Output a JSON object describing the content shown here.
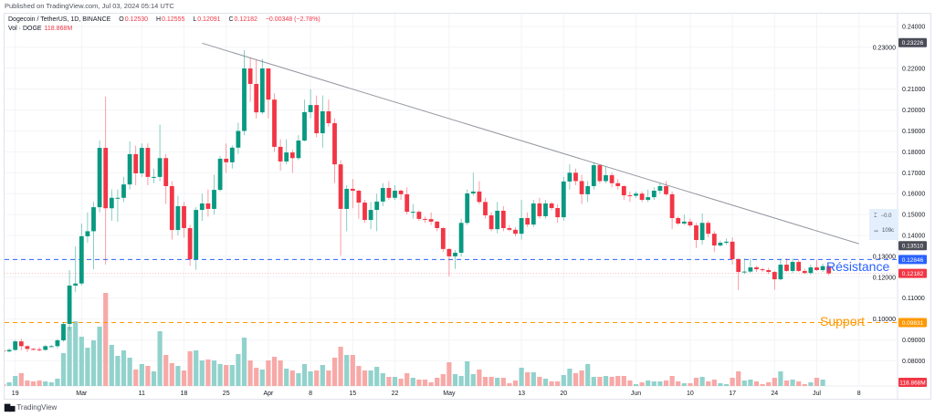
{
  "header": {
    "published": "Published on TradingView.com, Jul 03, 2024 05:14 UTC",
    "symbol": "Dogecoin / TetherUS, 1D, BINANCE",
    "o_label": "O",
    "o": "0.12530",
    "h_label": "H",
    "h": "0.12555",
    "l_label": "L",
    "l": "0.12091",
    "c_label": "C",
    "c": "0.12182",
    "change": "−0.00348 (−2.78%)",
    "vol_label": "Vol · DOGE",
    "vol": "118.868M"
  },
  "footer": {
    "logo_text": "TradingView",
    "logo_icon": "tradingview-logo-icon"
  },
  "measure_tool": {
    "price_change": "−0.0",
    "bars": "109c",
    "icons": [
      "height-icon",
      "width-icon"
    ]
  },
  "annotations": {
    "resistance": {
      "label": "Résistance",
      "price": 0.12846,
      "badge": "0.12846",
      "color": "#2962ff"
    },
    "support": {
      "label": "Support",
      "price": 0.09831,
      "badge": "0.09831",
      "color": "#ff9800"
    },
    "trendline": {
      "from": {
        "date": "2024-03-21",
        "price": 0.232
      },
      "to": {
        "date": "2024-07-08",
        "price": 0.136
      },
      "color": "#9598a1"
    }
  },
  "price_badges": [
    {
      "text": "0.23226",
      "price": 0.23226,
      "color": "#4a4d57"
    },
    {
      "text": "0.13510",
      "price": 0.1351,
      "color": "#4a4d57"
    },
    {
      "text": "0.12182",
      "price": 0.12182,
      "color": "#f23645"
    }
  ],
  "volume_badge": {
    "text": "118.868M",
    "color": "#f23645"
  },
  "colors": {
    "up": "#089981",
    "down": "#f23645",
    "vol_up": "#92d2cc",
    "vol_down": "#f7a9a7",
    "last_price_line": "#f23645"
  },
  "chart_data": {
    "type": "candlestick",
    "title": "Dogecoin / TetherUS, 1D, BINANCE",
    "ylim": [
      0.075,
      0.245
    ],
    "y_ticks": [
      "0.24000",
      "0.23000",
      "0.22000",
      "0.21000",
      "0.20000",
      "0.19000",
      "0.18000",
      "0.17000",
      "0.16000",
      "0.15000",
      "0.14000",
      "0.13000",
      "0.12000",
      "0.11000",
      "0.10000",
      "0.09000",
      "0.08000"
    ],
    "x_ticks": [
      {
        "label": "19",
        "date": "2024-02-19"
      },
      {
        "label": "Mar",
        "date": "2024-03-01"
      },
      {
        "label": "11",
        "date": "2024-03-11"
      },
      {
        "label": "18",
        "date": "2024-03-18"
      },
      {
        "label": "25",
        "date": "2024-03-25"
      },
      {
        "label": "Apr",
        "date": "2024-04-01"
      },
      {
        "label": "8",
        "date": "2024-04-08"
      },
      {
        "label": "15",
        "date": "2024-04-15"
      },
      {
        "label": "22",
        "date": "2024-04-22"
      },
      {
        "label": "May",
        "date": "2024-05-01"
      },
      {
        "label": "13",
        "date": "2024-05-13"
      },
      {
        "label": "20",
        "date": "2024-05-20"
      },
      {
        "label": "Jun",
        "date": "2024-06-01"
      },
      {
        "label": "10",
        "date": "2024-06-10"
      },
      {
        "label": "17",
        "date": "2024-06-17"
      },
      {
        "label": "24",
        "date": "2024-06-24"
      },
      {
        "label": "Jul",
        "date": "2024-07-01"
      },
      {
        "label": "8",
        "date": "2024-07-08"
      }
    ],
    "grid": true,
    "columns": [
      "date",
      "open",
      "high",
      "low",
      "close",
      "volume_millions"
    ],
    "candles": [
      [
        "2024-02-17",
        0.085,
        0.086,
        0.0838,
        0.0845,
        330
      ],
      [
        "2024-02-18",
        0.0845,
        0.086,
        0.084,
        0.0852,
        550
      ],
      [
        "2024-02-19",
        0.0852,
        0.09,
        0.0848,
        0.0893,
        1320
      ],
      [
        "2024-02-20",
        0.0893,
        0.0905,
        0.085,
        0.087,
        1650
      ],
      [
        "2024-02-21",
        0.087,
        0.0875,
        0.0842,
        0.0857,
        770
      ],
      [
        "2024-02-22",
        0.0857,
        0.0862,
        0.085,
        0.0855,
        660
      ],
      [
        "2024-02-23",
        0.0855,
        0.0865,
        0.0845,
        0.0852,
        770
      ],
      [
        "2024-02-24",
        0.0852,
        0.0875,
        0.085,
        0.087,
        660
      ],
      [
        "2024-02-25",
        0.087,
        0.0876,
        0.0865,
        0.087,
        550
      ],
      [
        "2024-02-26",
        0.087,
        0.0905,
        0.086,
        0.0898,
        990
      ],
      [
        "2024-02-27",
        0.0898,
        0.0985,
        0.089,
        0.0976,
        4070
      ],
      [
        "2024-02-28",
        0.0976,
        0.1234,
        0.0946,
        0.116,
        7260
      ],
      [
        "2024-02-29",
        0.116,
        0.1347,
        0.113,
        0.117,
        7920
      ],
      [
        "2024-03-01",
        0.117,
        0.1457,
        0.116,
        0.1396,
        6050
      ],
      [
        "2024-03-02",
        0.1396,
        0.151,
        0.1365,
        0.142,
        4730
      ],
      [
        "2024-03-03",
        0.142,
        0.156,
        0.1238,
        0.1535,
        5610
      ],
      [
        "2024-03-04",
        0.1535,
        0.1854,
        0.151,
        0.1819,
        7260
      ],
      [
        "2024-03-05",
        0.1819,
        0.2064,
        0.126,
        0.153,
        11330
      ],
      [
        "2024-03-06",
        0.153,
        0.162,
        0.147,
        0.158,
        5060
      ],
      [
        "2024-03-07",
        0.158,
        0.162,
        0.1465,
        0.158,
        3740
      ],
      [
        "2024-03-08",
        0.158,
        0.168,
        0.156,
        0.1644,
        4400
      ],
      [
        "2024-03-09",
        0.1644,
        0.185,
        0.162,
        0.1789,
        3520
      ],
      [
        "2024-03-10",
        0.1789,
        0.183,
        0.164,
        0.1697,
        2090
      ],
      [
        "2024-03-11",
        0.1697,
        0.184,
        0.168,
        0.1819,
        2750
      ],
      [
        "2024-03-12",
        0.1819,
        0.184,
        0.164,
        0.168,
        2530
      ],
      [
        "2024-03-13",
        0.168,
        0.172,
        0.165,
        0.168,
        1870
      ],
      [
        "2024-03-14",
        0.168,
        0.193,
        0.166,
        0.177,
        6710
      ],
      [
        "2024-03-15",
        0.177,
        0.179,
        0.155,
        0.1636,
        3850
      ],
      [
        "2024-03-16",
        0.1636,
        0.166,
        0.138,
        0.1426,
        2860
      ],
      [
        "2024-03-17",
        0.1426,
        0.159,
        0.14,
        0.154,
        2530
      ],
      [
        "2024-03-18",
        0.154,
        0.156,
        0.139,
        0.1435,
        1980
      ],
      [
        "2024-03-19",
        0.1435,
        0.145,
        0.1255,
        0.1286,
        4290
      ],
      [
        "2024-03-20",
        0.1286,
        0.1535,
        0.1235,
        0.1522,
        4400
      ],
      [
        "2024-03-21",
        0.1522,
        0.16,
        0.147,
        0.1553,
        3190
      ],
      [
        "2024-03-22",
        0.1553,
        0.162,
        0.149,
        0.1527,
        3300
      ],
      [
        "2024-03-23",
        0.1527,
        0.169,
        0.15,
        0.1618,
        3190
      ],
      [
        "2024-03-24",
        0.1618,
        0.178,
        0.161,
        0.1767,
        2750
      ],
      [
        "2024-03-25",
        0.1767,
        0.184,
        0.17,
        0.175,
        2640
      ],
      [
        "2024-03-26",
        0.175,
        0.183,
        0.172,
        0.182,
        2640
      ],
      [
        "2024-03-27",
        0.182,
        0.194,
        0.179,
        0.19,
        3960
      ],
      [
        "2024-03-28",
        0.19,
        0.2287,
        0.188,
        0.2199,
        5940
      ],
      [
        "2024-03-29",
        0.2199,
        0.225,
        0.204,
        0.2125,
        3190
      ],
      [
        "2024-03-30",
        0.2125,
        0.224,
        0.196,
        0.1989,
        2310
      ],
      [
        "2024-03-31",
        0.1989,
        0.2245,
        0.198,
        0.2199,
        2090
      ],
      [
        "2024-04-01",
        0.2199,
        0.22,
        0.196,
        0.205,
        3190
      ],
      [
        "2024-04-02",
        0.205,
        0.208,
        0.18,
        0.1824,
        3630
      ],
      [
        "2024-04-03",
        0.1824,
        0.186,
        0.171,
        0.1754,
        3190
      ],
      [
        "2024-04-04",
        0.1754,
        0.186,
        0.174,
        0.1797,
        2200
      ],
      [
        "2024-04-05",
        0.1797,
        0.181,
        0.17,
        0.177,
        1980
      ],
      [
        "2024-04-06",
        0.177,
        0.188,
        0.176,
        0.1854,
        1650
      ],
      [
        "2024-04-07",
        0.1854,
        0.205,
        0.185,
        0.199,
        2750
      ],
      [
        "2024-04-08",
        0.199,
        0.21,
        0.196,
        0.2024,
        1870
      ],
      [
        "2024-04-09",
        0.2024,
        0.207,
        0.187,
        0.1889,
        1980
      ],
      [
        "2024-04-10",
        0.1889,
        0.207,
        0.182,
        0.1994,
        2640
      ],
      [
        "2024-04-11",
        0.1994,
        0.205,
        0.192,
        0.1937,
        1980
      ],
      [
        "2024-04-12",
        0.1937,
        0.196,
        0.165,
        0.174,
        3520
      ],
      [
        "2024-04-13",
        0.174,
        0.176,
        0.1304,
        0.1527,
        4840
      ],
      [
        "2024-04-14",
        0.1527,
        0.164,
        0.142,
        0.1623,
        3850
      ],
      [
        "2024-04-15",
        0.1623,
        0.167,
        0.153,
        0.1614,
        3850
      ],
      [
        "2024-04-16",
        0.1614,
        0.162,
        0.148,
        0.1557,
        2530
      ],
      [
        "2024-04-17",
        0.1557,
        0.157,
        0.146,
        0.1474,
        1980
      ],
      [
        "2024-04-18",
        0.1474,
        0.156,
        0.143,
        0.1522,
        1980
      ],
      [
        "2024-04-19",
        0.1522,
        0.16,
        0.142,
        0.1562,
        2420
      ],
      [
        "2024-04-20",
        0.1562,
        0.165,
        0.154,
        0.1627,
        1650
      ],
      [
        "2024-04-21",
        0.1627,
        0.166,
        0.157,
        0.158,
        1210
      ],
      [
        "2024-04-22",
        0.158,
        0.164,
        0.157,
        0.1614,
        1210
      ],
      [
        "2024-04-23",
        0.1614,
        0.162,
        0.157,
        0.1597,
        990
      ],
      [
        "2024-04-24",
        0.1597,
        0.163,
        0.15,
        0.1513,
        1650
      ],
      [
        "2024-04-25",
        0.1513,
        0.155,
        0.148,
        0.1513,
        1100
      ],
      [
        "2024-04-26",
        0.1513,
        0.152,
        0.147,
        0.1479,
        880
      ],
      [
        "2024-04-27",
        0.1479,
        0.149,
        0.146,
        0.1478,
        880
      ],
      [
        "2024-04-28",
        0.1478,
        0.151,
        0.145,
        0.1466,
        550
      ],
      [
        "2024-04-29",
        0.1466,
        0.147,
        0.142,
        0.1435,
        1100
      ],
      [
        "2024-04-30",
        0.1435,
        0.144,
        0.132,
        0.1335,
        1540
      ],
      [
        "2024-05-01",
        0.1335,
        0.134,
        0.1204,
        0.13,
        2970
      ],
      [
        "2024-05-02",
        0.13,
        0.133,
        0.124,
        0.1317,
        1540
      ],
      [
        "2024-05-03",
        0.1317,
        0.148,
        0.13,
        0.146,
        1320
      ],
      [
        "2024-05-04",
        0.146,
        0.162,
        0.145,
        0.1601,
        3080
      ],
      [
        "2024-05-05",
        0.1601,
        0.17,
        0.159,
        0.161,
        1540
      ],
      [
        "2024-05-06",
        0.161,
        0.166,
        0.155,
        0.156,
        2090
      ],
      [
        "2024-05-07",
        0.156,
        0.158,
        0.148,
        0.1496,
        1210
      ],
      [
        "2024-05-08",
        0.1496,
        0.151,
        0.142,
        0.143,
        1210
      ],
      [
        "2024-05-09",
        0.143,
        0.156,
        0.141,
        0.1518,
        1100
      ],
      [
        "2024-05-10",
        0.1518,
        0.154,
        0.142,
        0.1435,
        1100
      ],
      [
        "2024-05-11",
        0.1435,
        0.145,
        0.142,
        0.1427,
        440
      ],
      [
        "2024-05-12",
        0.1427,
        0.144,
        0.1395,
        0.1408,
        770
      ],
      [
        "2024-05-13",
        0.1408,
        0.157,
        0.138,
        0.1483,
        2310
      ],
      [
        "2024-05-14",
        0.1483,
        0.151,
        0.144,
        0.1452,
        1760
      ],
      [
        "2024-05-15",
        0.1452,
        0.157,
        0.144,
        0.1553,
        1760
      ],
      [
        "2024-05-16",
        0.1553,
        0.158,
        0.148,
        0.1492,
        1210
      ],
      [
        "2024-05-17",
        0.1492,
        0.157,
        0.148,
        0.1553,
        990
      ],
      [
        "2024-05-18",
        0.1553,
        0.156,
        0.152,
        0.1531,
        660
      ],
      [
        "2024-05-19",
        0.1531,
        0.155,
        0.146,
        0.1487,
        660
      ],
      [
        "2024-05-20",
        0.1487,
        0.168,
        0.147,
        0.1658,
        1430
      ],
      [
        "2024-05-21",
        0.1658,
        0.174,
        0.162,
        0.17,
        2200
      ],
      [
        "2024-05-22",
        0.17,
        0.172,
        0.164,
        0.166,
        1650
      ],
      [
        "2024-05-23",
        0.166,
        0.169,
        0.155,
        0.1597,
        1980
      ],
      [
        "2024-05-24",
        0.1597,
        0.166,
        0.156,
        0.1636,
        2750
      ],
      [
        "2024-05-25",
        0.1636,
        0.175,
        0.162,
        0.1736,
        1210
      ],
      [
        "2024-05-26",
        0.1736,
        0.174,
        0.165,
        0.166,
        1210
      ],
      [
        "2024-05-27",
        0.166,
        0.173,
        0.165,
        0.1688,
        1320
      ],
      [
        "2024-05-28",
        0.1688,
        0.17,
        0.163,
        0.165,
        1210
      ],
      [
        "2024-05-29",
        0.165,
        0.167,
        0.162,
        0.1636,
        1320
      ],
      [
        "2024-05-30",
        0.1636,
        0.164,
        0.157,
        0.1592,
        1320
      ],
      [
        "2024-05-31",
        0.1592,
        0.161,
        0.156,
        0.159,
        770
      ],
      [
        "2024-06-01",
        0.159,
        0.161,
        0.158,
        0.16,
        330
      ],
      [
        "2024-06-02",
        0.16,
        0.161,
        0.156,
        0.157,
        550
      ],
      [
        "2024-06-03",
        0.157,
        0.162,
        0.156,
        0.1583,
        770
      ],
      [
        "2024-06-04",
        0.1583,
        0.163,
        0.157,
        0.1614,
        660
      ],
      [
        "2024-06-05",
        0.1614,
        0.165,
        0.16,
        0.1636,
        660
      ],
      [
        "2024-06-06",
        0.1636,
        0.166,
        0.159,
        0.1597,
        770
      ],
      [
        "2024-06-07",
        0.1597,
        0.161,
        0.143,
        0.1483,
        1320
      ],
      [
        "2024-06-08",
        0.1483,
        0.149,
        0.145,
        0.1457,
        660
      ],
      [
        "2024-06-09",
        0.1457,
        0.15,
        0.145,
        0.1466,
        440
      ],
      [
        "2024-06-10",
        0.1466,
        0.148,
        0.144,
        0.1448,
        440
      ],
      [
        "2024-06-11",
        0.1448,
        0.146,
        0.134,
        0.1378,
        1100
      ],
      [
        "2024-06-12",
        0.1378,
        0.1505,
        0.1355,
        0.146,
        1210
      ],
      [
        "2024-06-13",
        0.146,
        0.147,
        0.139,
        0.1408,
        660
      ],
      [
        "2024-06-14",
        0.1408,
        0.142,
        0.132,
        0.1352,
        880
      ],
      [
        "2024-06-15",
        0.1352,
        0.1375,
        0.1345,
        0.1365,
        440
      ],
      [
        "2024-06-16",
        0.1365,
        0.1385,
        0.1355,
        0.137,
        330
      ],
      [
        "2024-06-17",
        0.137,
        0.139,
        0.126,
        0.1286,
        1100
      ],
      [
        "2024-06-18",
        0.1286,
        0.129,
        0.1138,
        0.1225,
        1870
      ],
      [
        "2024-06-19",
        0.1225,
        0.129,
        0.1215,
        0.1227,
        770
      ],
      [
        "2024-06-20",
        0.1227,
        0.129,
        0.122,
        0.1247,
        880
      ],
      [
        "2024-06-21",
        0.1247,
        0.1255,
        0.1225,
        0.1238,
        660
      ],
      [
        "2024-06-22",
        0.1238,
        0.1245,
        0.1225,
        0.1234,
        330
      ],
      [
        "2024-06-23",
        0.1234,
        0.1245,
        0.1215,
        0.1225,
        550
      ],
      [
        "2024-06-24",
        0.1225,
        0.123,
        0.114,
        0.119,
        1100
      ],
      [
        "2024-06-25",
        0.119,
        0.129,
        0.1185,
        0.126,
        1870
      ],
      [
        "2024-06-26",
        0.126,
        0.129,
        0.1225,
        0.123,
        770
      ],
      [
        "2024-06-27",
        0.123,
        0.129,
        0.122,
        0.1273,
        880
      ],
      [
        "2024-06-28",
        0.1273,
        0.1285,
        0.1225,
        0.123,
        660
      ],
      [
        "2024-06-29",
        0.123,
        0.124,
        0.1215,
        0.122,
        330
      ],
      [
        "2024-06-30",
        0.122,
        0.126,
        0.121,
        0.1247,
        550
      ],
      [
        "2024-07-01",
        0.1247,
        0.1285,
        0.123,
        0.1234,
        1100
      ],
      [
        "2024-07-02",
        0.1234,
        0.1265,
        0.1225,
        0.1253,
        880
      ],
      [
        "2024-07-03",
        0.1253,
        0.12555,
        0.12091,
        0.12182,
        118.868
      ]
    ]
  }
}
